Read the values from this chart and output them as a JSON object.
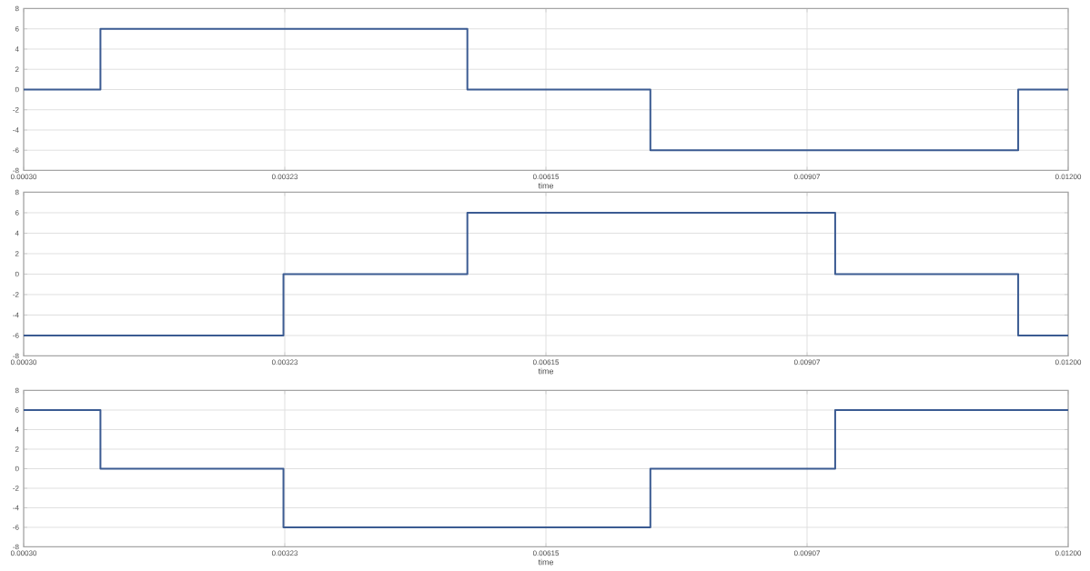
{
  "chart_data": [
    {
      "type": "step",
      "xlabel": "time",
      "x": [
        0.0003,
        0.00116,
        0.00527,
        0.00732,
        0.01144,
        0.012
      ],
      "values": [
        0,
        6,
        0,
        -6,
        0,
        0
      ],
      "color": "#3b5b92",
      "xlim": [
        0.0003,
        0.012
      ],
      "ylim": [
        -8,
        8
      ],
      "xticks": [
        {
          "value": 0.0003,
          "label": "0.00030"
        },
        {
          "value": 0.003225,
          "label": "0.00323"
        },
        {
          "value": 0.00615,
          "label": "0.00615"
        },
        {
          "value": 0.009075,
          "label": "0.00907"
        },
        {
          "value": 0.012,
          "label": "0.01200"
        }
      ],
      "yticks": [
        -8,
        -6,
        -4,
        -2,
        0,
        2,
        4,
        6,
        8
      ],
      "grid": true
    },
    {
      "type": "step",
      "xlabel": "time",
      "x": [
        0.0003,
        0.00321,
        0.00527,
        0.00939,
        0.01144,
        0.012
      ],
      "values": [
        -6,
        0,
        6,
        0,
        -6,
        -6
      ],
      "color": "#3b5b92",
      "xlim": [
        0.0003,
        0.012
      ],
      "ylim": [
        -8,
        8
      ],
      "xticks": [
        {
          "value": 0.0003,
          "label": "0.00030"
        },
        {
          "value": 0.003225,
          "label": "0.00323"
        },
        {
          "value": 0.00615,
          "label": "0.00615"
        },
        {
          "value": 0.009075,
          "label": "0.00907"
        },
        {
          "value": 0.012,
          "label": "0.01200"
        }
      ],
      "yticks": [
        -8,
        -6,
        -4,
        -2,
        0,
        2,
        4,
        6,
        8
      ],
      "grid": true
    },
    {
      "type": "step",
      "xlabel": "time",
      "x": [
        0.0003,
        0.00116,
        0.00321,
        0.00732,
        0.00939,
        0.012
      ],
      "values": [
        6,
        0,
        -6,
        0,
        6,
        6
      ],
      "color": "#3b5b92",
      "xlim": [
        0.0003,
        0.012
      ],
      "ylim": [
        -8,
        8
      ],
      "xticks": [
        {
          "value": 0.0003,
          "label": "0.00030"
        },
        {
          "value": 0.003225,
          "label": "0.00323"
        },
        {
          "value": 0.00615,
          "label": "0.00615"
        },
        {
          "value": 0.009075,
          "label": "0.00907"
        },
        {
          "value": 0.012,
          "label": "0.01200"
        }
      ],
      "yticks": [
        -8,
        -6,
        -4,
        -2,
        0,
        2,
        4,
        6,
        8
      ],
      "grid": true
    }
  ]
}
